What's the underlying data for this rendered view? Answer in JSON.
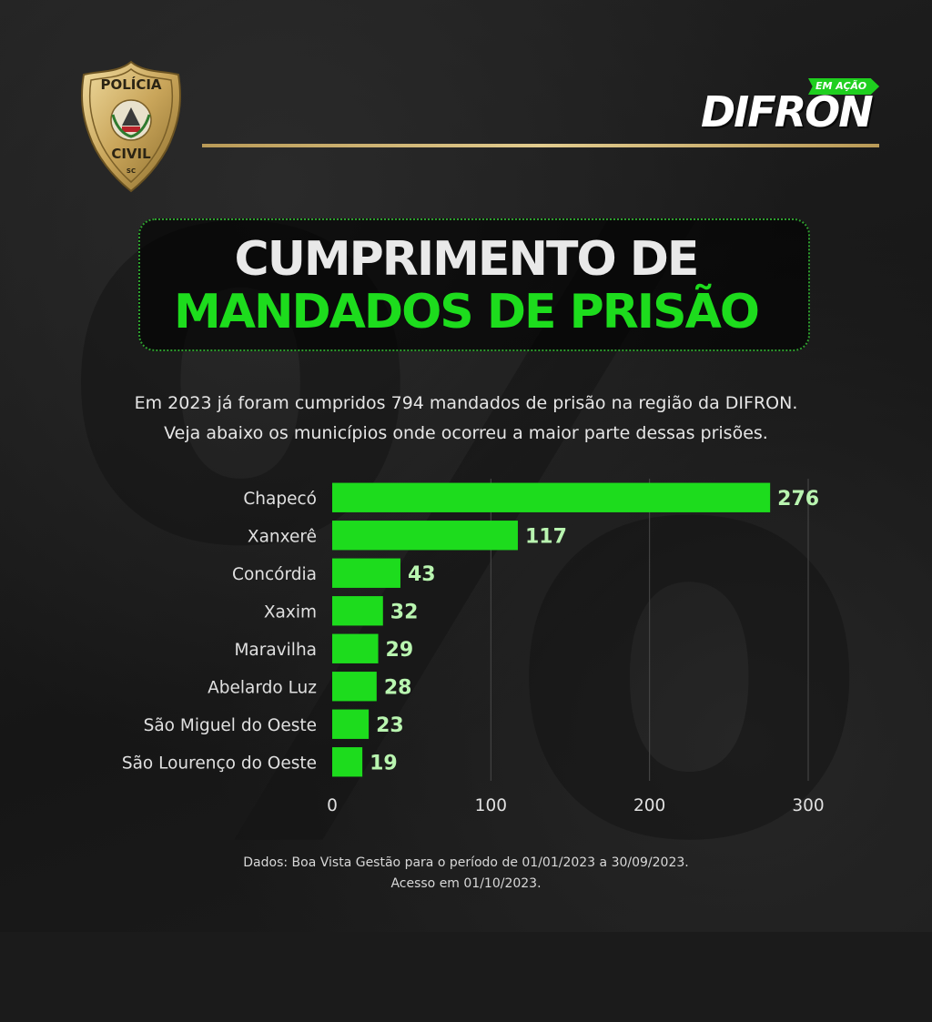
{
  "badge": {
    "top_text": "POLÍCIA",
    "bottom_text": "CIVIL",
    "state": "SC"
  },
  "logo": {
    "tag": "EM AÇÃO",
    "word": "DIFRON"
  },
  "title": {
    "line1": "CUMPRIMENTO DE",
    "line2": "MANDADOS DE PRISÃO"
  },
  "intro": {
    "line1": "Em 2023 já foram cumpridos 794 mandados de prisão na região da DIFRON.",
    "line2": "Veja abaixo os municípios onde ocorreu a maior parte dessas prisões."
  },
  "colors": {
    "bar": "#1ddc1d",
    "title_highlight": "#1ddc1d",
    "value_label": "#b9f5b0",
    "gold_rule": "#d6bd7c"
  },
  "chart_data": {
    "type": "bar",
    "orientation": "horizontal",
    "categories": [
      "Chapecó",
      "Xanxerê",
      "Concórdia",
      "Xaxim",
      "Maravilha",
      "Abelardo Luz",
      "São Miguel do Oeste",
      "São Lourenço do Oeste"
    ],
    "values": [
      276,
      117,
      43,
      32,
      29,
      28,
      23,
      19
    ],
    "xlim": [
      0,
      300
    ],
    "xticks": [
      0,
      100,
      200,
      300
    ],
    "grid": true,
    "title": "",
    "xlabel": "",
    "ylabel": ""
  },
  "footer": {
    "line1": "Dados: Boa Vista Gestão para o período de 01/01/2023 a 30/09/2023.",
    "line2": "Acesso em 01/10/2023."
  }
}
